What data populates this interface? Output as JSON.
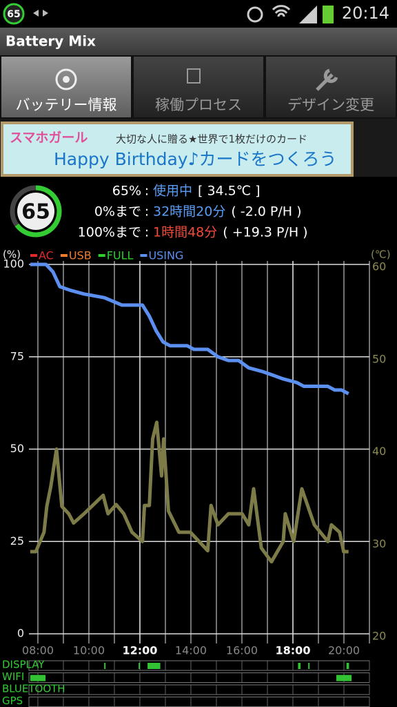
{
  "status_bar": {
    "badge": "65",
    "time": "20:14"
  },
  "app_title": "Battery Mix",
  "tabs": [
    "バッテリー情報",
    "稼働プロセス",
    "デザイン変更"
  ],
  "ad": {
    "brand": "スマホガール",
    "tagline": "大切な人に贈る★世界で1枚だけのカード",
    "headline": "Happy Birthday♪カードをつくろう"
  },
  "info": {
    "badge": "65",
    "separator": ":",
    "rows": [
      {
        "label": "65%",
        "status": "使用中",
        "detail": "[ 34.5℃ ]"
      },
      {
        "label": "0%まで",
        "status": "32時間20分",
        "detail": "( -2.0 P/H )"
      },
      {
        "label": "100%まで",
        "status": "1時間48分",
        "detail": "( +19.3 P/H )"
      }
    ]
  },
  "chart_data": {
    "type": "line",
    "ylabel": "(%)",
    "y2label": "(℃)",
    "xlim": [
      7.65,
      21.0
    ],
    "ylim": [
      0,
      100
    ],
    "y2lim": [
      20,
      60
    ],
    "xticks": [
      {
        "value": 8,
        "label": "08:00"
      },
      {
        "value": 10,
        "label": "10:00"
      },
      {
        "value": 12,
        "label": "12:00",
        "emphasis": true
      },
      {
        "value": 14,
        "label": "14:00"
      },
      {
        "value": 16,
        "label": "16:00"
      },
      {
        "value": 18,
        "label": "18:00",
        "emphasis": true
      },
      {
        "value": 20,
        "label": "20:00"
      }
    ],
    "xgrid": [
      8,
      9,
      10,
      11,
      12,
      13,
      14,
      15,
      16,
      17,
      18,
      19,
      20,
      21
    ],
    "yticks": [
      0,
      25,
      50,
      75,
      100
    ],
    "y2ticks": [
      20,
      30,
      40,
      50,
      60
    ],
    "series": [
      {
        "name": "AC",
        "color": "#e02a2a"
      },
      {
        "name": "USB",
        "color": "#f07c30"
      },
      {
        "name": "FULL",
        "color": "#2ed02e"
      },
      {
        "name": "USING",
        "color": "#5b8ff0",
        "x": [
          7.7,
          8.32,
          8.59,
          8.86,
          9.27,
          9.81,
          10.61,
          11.29,
          12.1,
          12.37,
          12.64,
          12.91,
          13.18,
          13.85,
          14.12,
          14.66,
          15.06,
          15.47,
          15.87,
          16.27,
          16.81,
          17.22,
          17.62,
          18.16,
          18.43,
          19.37,
          19.64,
          19.91,
          20.18
        ],
        "values": [
          100,
          100,
          98,
          94,
          93,
          92,
          91,
          89,
          89,
          86,
          82,
          79,
          78,
          78,
          77,
          77,
          75,
          74,
          74,
          72,
          71,
          70,
          69,
          68,
          67,
          67,
          66,
          66,
          65
        ]
      },
      {
        "color": "#7d7c48",
        "axis": "y2",
        "x": [
          7.7,
          7.92,
          8.24,
          8.35,
          8.51,
          8.73,
          8.94,
          9.21,
          9.4,
          9.81,
          10.56,
          10.75,
          11.07,
          11.37,
          11.69,
          12.1,
          12.18,
          12.37,
          12.5,
          12.66,
          12.85,
          12.93,
          13.12,
          13.53,
          13.98,
          14.66,
          14.79,
          15.06,
          15.47,
          16.01,
          16.27,
          16.46,
          16.76,
          17.16,
          17.62,
          17.7,
          18.03,
          18.35,
          18.84,
          19.37,
          19.51,
          19.83,
          19.99,
          20.18
        ],
        "values": [
          28.9,
          28.9,
          31.0,
          33.8,
          36.0,
          40.0,
          33.8,
          33.0,
          32.0,
          33.0,
          35.0,
          33.0,
          34.0,
          33.0,
          31.0,
          30.0,
          33.9,
          33.9,
          41.1,
          42.9,
          37.1,
          41.1,
          33.3,
          31.0,
          31.0,
          29.0,
          33.9,
          31.8,
          33.0,
          33.0,
          31.8,
          35.7,
          29.3,
          27.8,
          30.0,
          33.0,
          30.0,
          35.7,
          31.8,
          30.0,
          31.8,
          31.0,
          28.9,
          28.9
        ]
      }
    ]
  },
  "activity": [
    {
      "label": "DISPLAY",
      "segments": [
        [
          10.6,
          10.65
        ],
        [
          11.95,
          12.0
        ],
        [
          12.3,
          12.8
        ],
        [
          18.2,
          18.3
        ],
        [
          18.6,
          18.65
        ],
        [
          20.1,
          20.2
        ]
      ]
    },
    {
      "label": "WIFI",
      "segments": [
        [
          7.7,
          8.3
        ],
        [
          19.7,
          20.3
        ]
      ]
    },
    {
      "label": "BLUETOOTH",
      "segments": []
    },
    {
      "label": "GPS",
      "segments": []
    }
  ]
}
